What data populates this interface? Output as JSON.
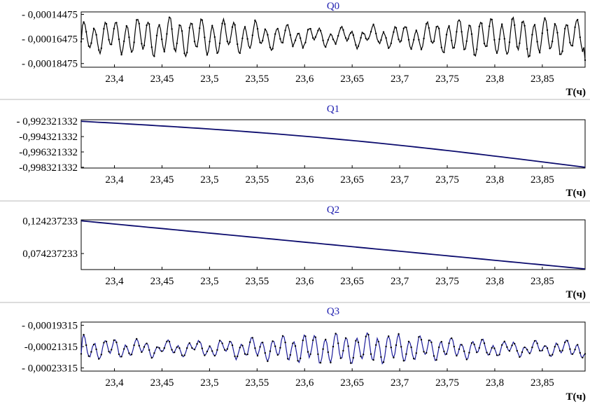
{
  "chart_data": [
    {
      "type": "line",
      "title": "Q0",
      "xlabel": "T(ч)",
      "xlim": [
        23.365,
        23.895
      ],
      "xticks": [
        23.4,
        23.45,
        23.5,
        23.55,
        23.6,
        23.65,
        23.7,
        23.75,
        23.8,
        23.85
      ],
      "xtick_labels": [
        "23,4",
        "23,45",
        "23,5",
        "23,55",
        "23,6",
        "23,65",
        "23,7",
        "23,75",
        "23,8",
        "23,85"
      ],
      "yticks": [
        -0.00014475,
        -0.00016475,
        -0.00018475
      ],
      "ytick_labels": [
        "- 0,00014475",
        "- 0,00016475",
        "- 0,00018475"
      ],
      "ylim": [
        -0.00018775,
        -0.00014275
      ],
      "series": [
        {
          "style": "dotted-line",
          "color": "#000000",
          "oscillation": {
            "center": -0.000163,
            "amplitude": 1.45e-05,
            "cycles": 47
          },
          "start": {
            "x": 23.365,
            "y": -0.000167
          },
          "end": {
            "x": 23.895,
            "y": -0.000182
          }
        }
      ]
    },
    {
      "type": "line",
      "title": "Q1",
      "xlabel": "T(ч)",
      "xlim": [
        23.365,
        23.895
      ],
      "xticks": [
        23.4,
        23.45,
        23.5,
        23.55,
        23.6,
        23.65,
        23.7,
        23.75,
        23.8,
        23.85
      ],
      "xtick_labels": [
        "23,4",
        "23,45",
        "23,5",
        "23,55",
        "23,6",
        "23,65",
        "23,7",
        "23,75",
        "23,8",
        "23,85"
      ],
      "yticks": [
        -0.992321332,
        -0.994321332,
        -0.996321332,
        -0.998321332
      ],
      "ytick_labels": [
        "- 0,992321332",
        "-0,994321332",
        "-0,996321332",
        "-0,998321332"
      ],
      "ylim": [
        -0.998421332,
        -0.992121332
      ],
      "series": [
        {
          "color": "#0c0c6e",
          "shape": "slightly-convex",
          "start": {
            "x": 23.365,
            "y": -0.992321332
          },
          "end": {
            "x": 23.895,
            "y": -0.998321332
          }
        }
      ]
    },
    {
      "type": "line",
      "title": "Q2",
      "xlabel": "T(ч)",
      "xlim": [
        23.365,
        23.895
      ],
      "xticks": [
        23.4,
        23.45,
        23.5,
        23.55,
        23.6,
        23.65,
        23.7,
        23.75,
        23.8,
        23.85
      ],
      "xtick_labels": [
        "23,4",
        "23,45",
        "23,5",
        "23,55",
        "23,6",
        "23,65",
        "23,7",
        "23,75",
        "23,8",
        "23,85"
      ],
      "yticks": [
        0.124237233,
        0.074237233
      ],
      "ytick_labels": [
        "0,124237233",
        "0,074237233"
      ],
      "ylim": [
        0.049737233,
        0.125737233
      ],
      "series": [
        {
          "color": "#0c0c6e",
          "shape": "linear",
          "start": {
            "x": 23.365,
            "y": 0.124237233
          },
          "end": {
            "x": 23.895,
            "y": 0.050737233
          }
        }
      ]
    },
    {
      "type": "line",
      "title": "Q3",
      "xlabel": "T(ч)",
      "xlim": [
        23.365,
        23.895
      ],
      "xticks": [
        23.4,
        23.45,
        23.5,
        23.55,
        23.6,
        23.65,
        23.7,
        23.75,
        23.8,
        23.85
      ],
      "xtick_labels": [
        "23,4",
        "23,45",
        "23,5",
        "23,55",
        "23,6",
        "23,65",
        "23,7",
        "23,75",
        "23,8",
        "23,85"
      ],
      "yticks": [
        -0.00019315,
        -0.00021315,
        -0.00023315
      ],
      "ytick_labels": [
        "- 0,00019315",
        "-0,00021315",
        "- 0,00023315"
      ],
      "ylim": [
        -0.00023615,
        -0.00019015
      ],
      "series": [
        {
          "style": "line-with-dots",
          "color": "#1c1c9a",
          "oscillation": {
            "center": -0.000215,
            "amplitude": 1.35e-05,
            "cycles": 48
          },
          "start": {
            "x": 23.365,
            "y": -0.00022
          },
          "end": {
            "x": 23.895,
            "y": -0.00022
          }
        }
      ]
    }
  ]
}
